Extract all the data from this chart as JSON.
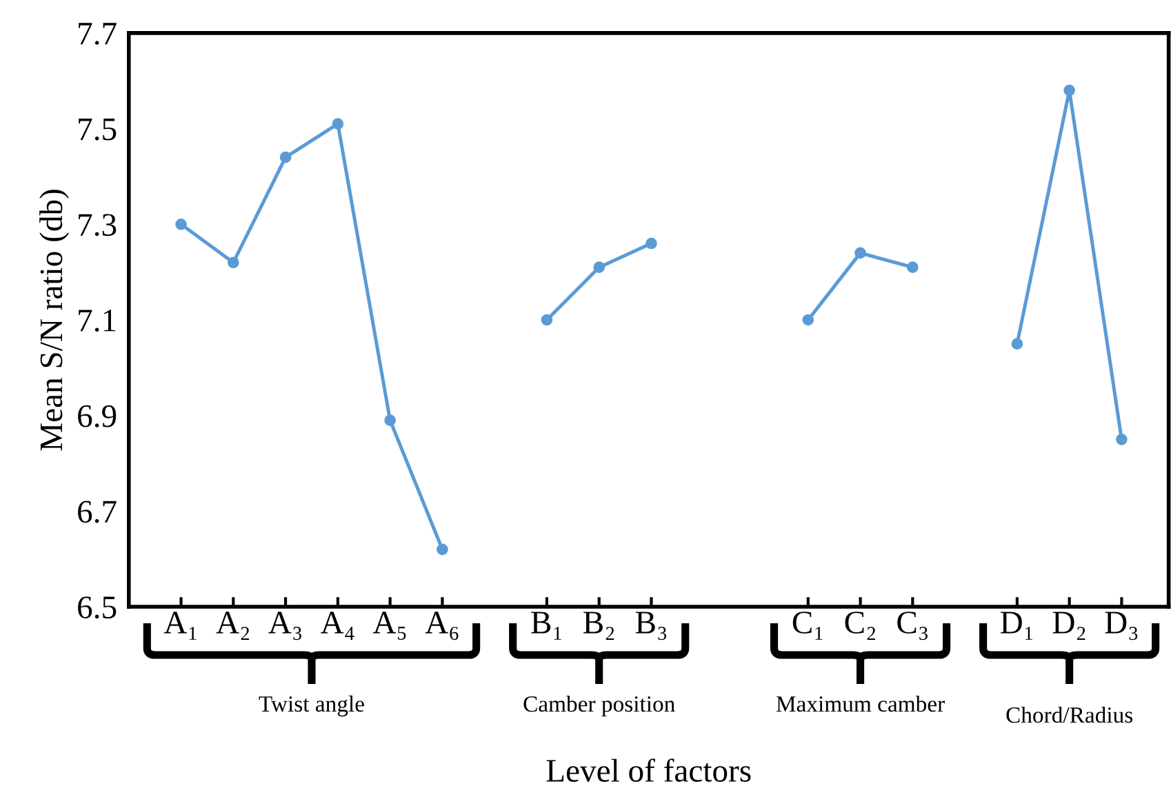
{
  "chart_data": {
    "type": "line",
    "xlabel": "Level of factors",
    "ylabel": "Mean S/N ratio (db)",
    "categories": [
      "A₁",
      "A₂",
      "A₃",
      "A₄",
      "A₅",
      "A₆",
      null,
      "B₁",
      "B₂",
      "B₃",
      null,
      null,
      "C₁",
      "C₂",
      "C₃",
      null,
      "D₁",
      "D₂",
      "D₃"
    ],
    "series": [
      {
        "color": "#5b9bd5",
        "values": [
          7.3,
          7.22,
          7.44,
          7.51,
          6.89,
          6.62,
          null,
          7.1,
          7.21,
          7.26,
          null,
          null,
          7.1,
          7.24,
          7.21,
          null,
          7.05,
          7.58,
          6.85
        ]
      }
    ],
    "ylim": [
      6.5,
      7.7
    ],
    "yticks": [
      6.5,
      6.7,
      6.9,
      7.1,
      7.3,
      7.5,
      7.7
    ],
    "marker": "circle",
    "grid": false,
    "legend": false,
    "annotations": [
      "Twist angle",
      "Camber position",
      "Maximum camber",
      "Chord/Radius"
    ]
  }
}
